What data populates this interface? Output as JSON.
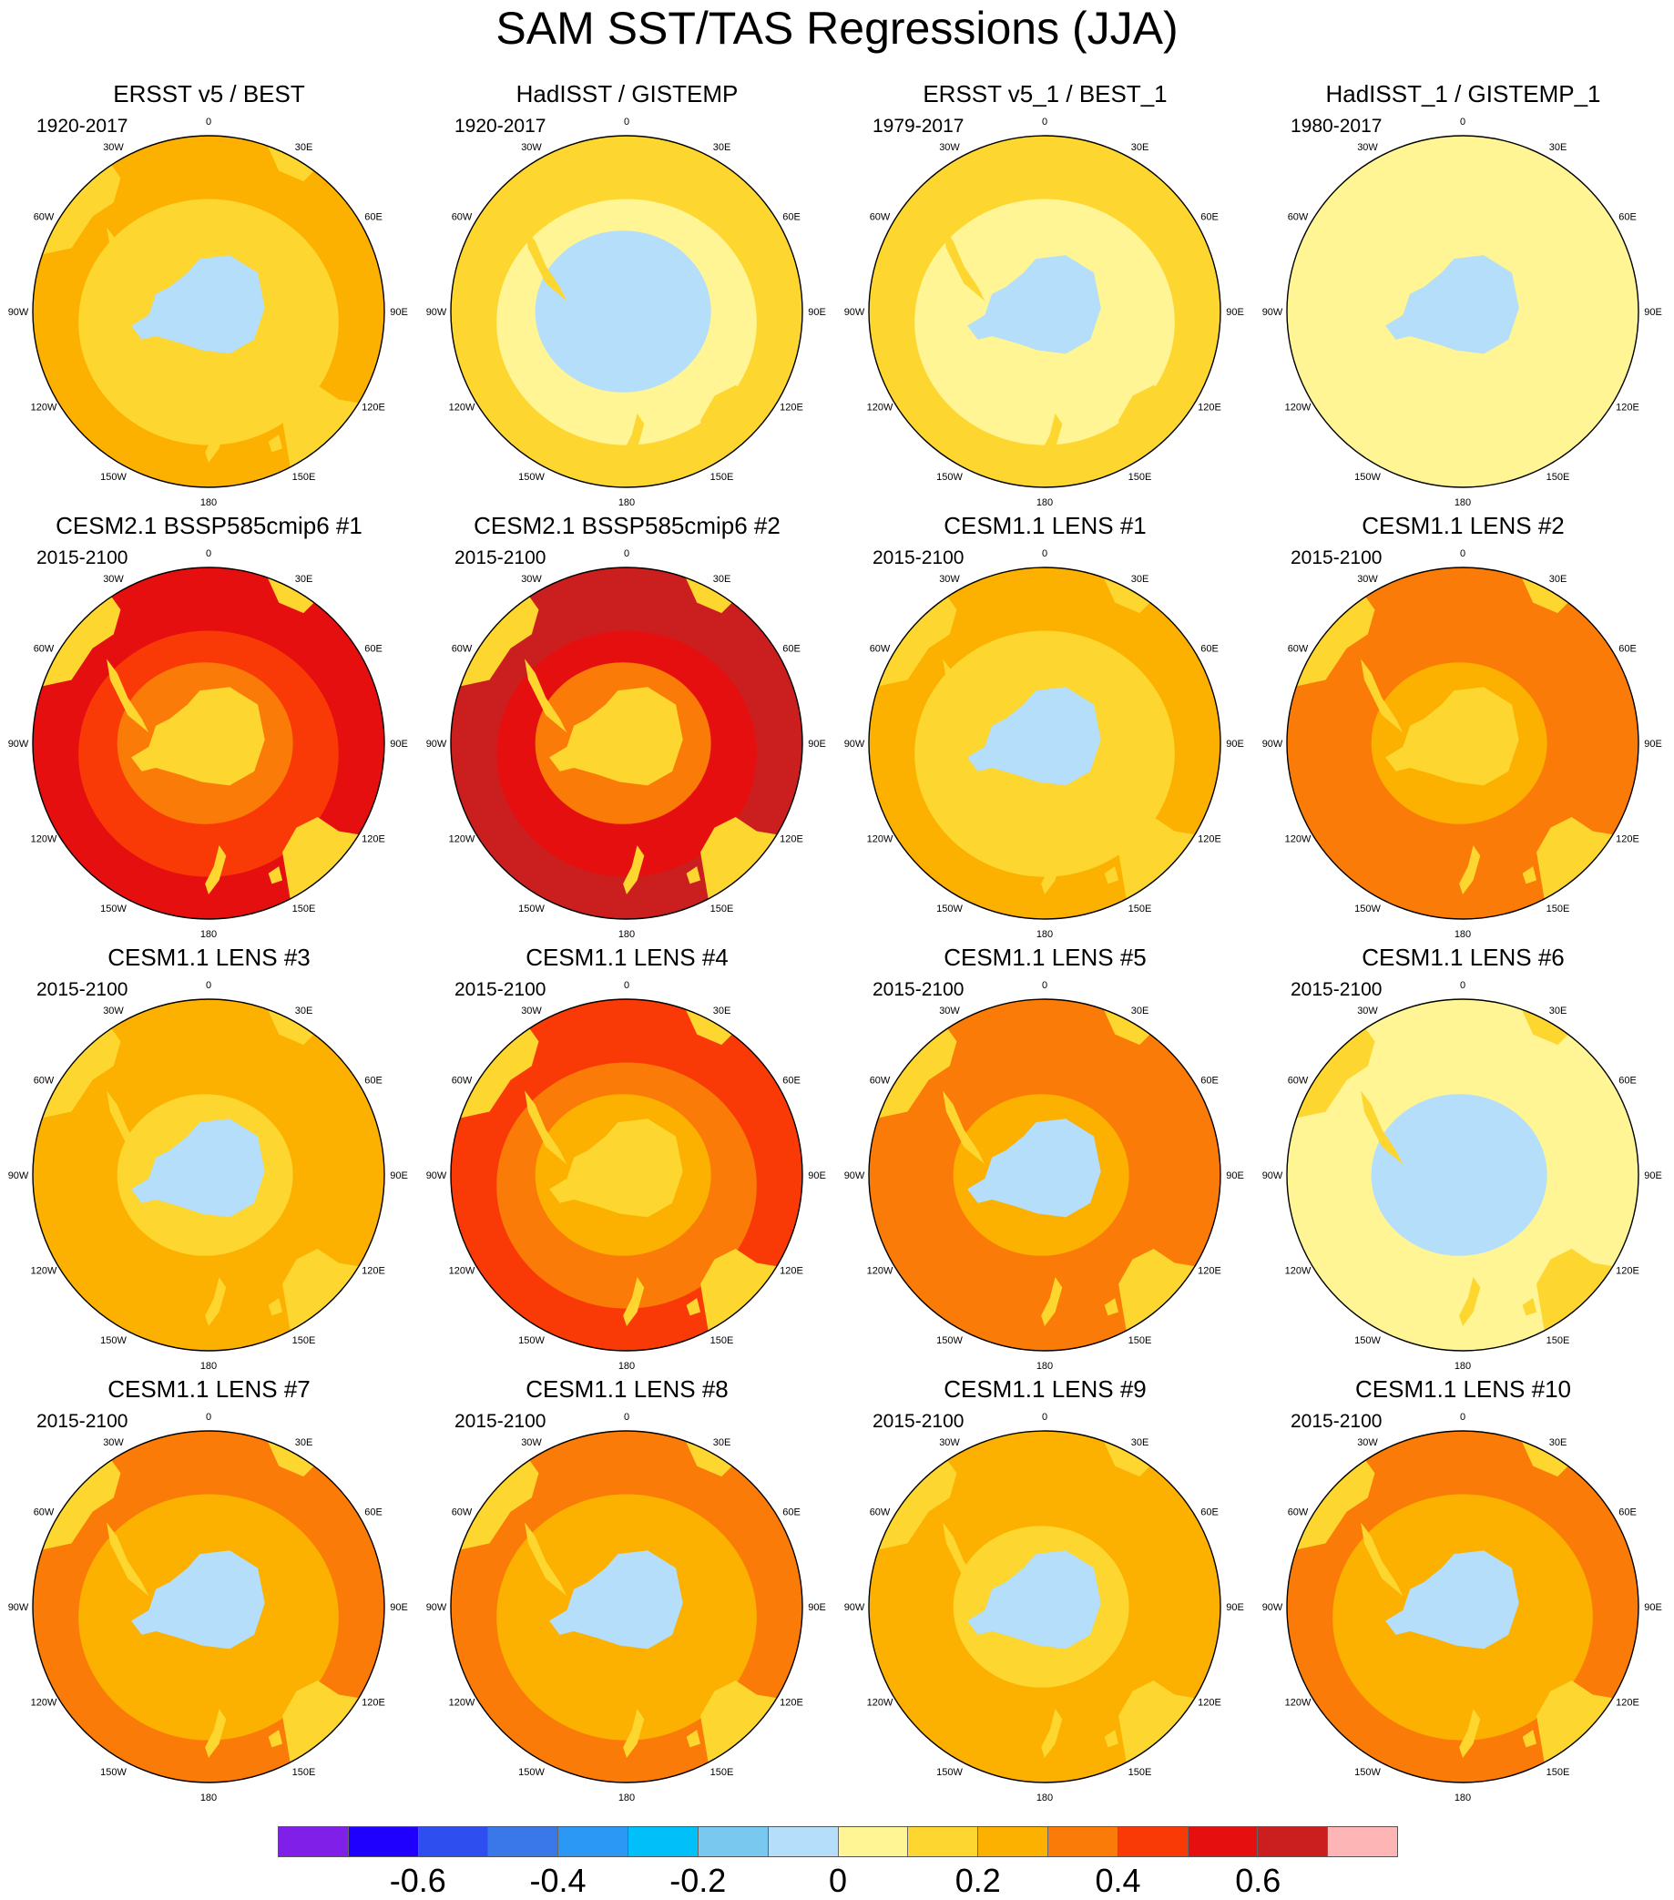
{
  "title": "SAM SST/TAS Regressions (JJA)",
  "longitude_labels": [
    "0",
    "30E",
    "60E",
    "90E",
    "120E",
    "150E",
    "180",
    "150W",
    "120W",
    "90W",
    "60W",
    "30W"
  ],
  "panels": [
    {
      "title": "ERSST v5 / BEST",
      "period": "1920-2017",
      "ocean": 0.2,
      "mid": 0.1,
      "inner": 0.1,
      "ice": -0.1,
      "land": 0.1
    },
    {
      "title": "HadISST / GISTEMP",
      "period": "1920-2017",
      "ocean": 0.1,
      "mid": 0.0,
      "inner": -0.1,
      "ice": -0.1,
      "land": 0.1
    },
    {
      "title": "ERSST v5_1 / BEST_1",
      "period": "1979-2017",
      "ocean": 0.1,
      "mid": 0.0,
      "inner": 0.0,
      "ice": -0.1,
      "land": 0.1
    },
    {
      "title": "HadISST_1 / GISTEMP_1",
      "period": "1980-2017",
      "ocean": 0.0,
      "mid": 0.0,
      "inner": 0.0,
      "ice": -0.1,
      "land": 0.0
    },
    {
      "title": "CESM2.1 BSSP585cmip6 #1",
      "period": "2015-2100",
      "ocean": 0.5,
      "mid": 0.4,
      "inner": 0.3,
      "ice": 0.1,
      "land": 0.1
    },
    {
      "title": "CESM2.1 BSSP585cmip6 #2",
      "period": "2015-2100",
      "ocean": 0.6,
      "mid": 0.5,
      "inner": 0.3,
      "ice": 0.1,
      "land": 0.1
    },
    {
      "title": "CESM1.1 LENS #1",
      "period": "2015-2100",
      "ocean": 0.2,
      "mid": 0.1,
      "inner": 0.1,
      "ice": -0.1,
      "land": 0.1
    },
    {
      "title": "CESM1.1 LENS #2",
      "period": "2015-2100",
      "ocean": 0.3,
      "mid": 0.3,
      "inner": 0.2,
      "ice": 0.1,
      "land": 0.1
    },
    {
      "title": "CESM1.1 LENS #3",
      "period": "2015-2100",
      "ocean": 0.2,
      "mid": 0.2,
      "inner": 0.1,
      "ice": -0.1,
      "land": 0.1
    },
    {
      "title": "CESM1.1 LENS #4",
      "period": "2015-2100",
      "ocean": 0.4,
      "mid": 0.3,
      "inner": 0.2,
      "ice": 0.1,
      "land": 0.1
    },
    {
      "title": "CESM1.1 LENS #5",
      "period": "2015-2100",
      "ocean": 0.3,
      "mid": 0.3,
      "inner": 0.2,
      "ice": -0.1,
      "land": 0.1
    },
    {
      "title": "CESM1.1 LENS #6",
      "period": "2015-2100",
      "ocean": 0.0,
      "mid": 0.0,
      "inner": -0.1,
      "ice": -0.1,
      "land": 0.1
    },
    {
      "title": "CESM1.1 LENS #7",
      "period": "2015-2100",
      "ocean": 0.3,
      "mid": 0.2,
      "inner": 0.2,
      "ice": -0.1,
      "land": 0.1
    },
    {
      "title": "CESM1.1 LENS #8",
      "period": "2015-2100",
      "ocean": 0.3,
      "mid": 0.2,
      "inner": 0.2,
      "ice": -0.1,
      "land": 0.1
    },
    {
      "title": "CESM1.1 LENS #9",
      "period": "2015-2100",
      "ocean": 0.2,
      "mid": 0.2,
      "inner": 0.1,
      "ice": -0.1,
      "land": 0.1
    },
    {
      "title": "CESM1.1 LENS #10",
      "period": "2015-2100",
      "ocean": 0.3,
      "mid": 0.2,
      "inner": 0.2,
      "ice": -0.1,
      "land": 0.1
    }
  ],
  "colorbar": {
    "colors": [
      "#7f1fe8",
      "#1f00ff",
      "#2e4ef0",
      "#3a78ea",
      "#2a98f4",
      "#00bff9",
      "#78c8f0",
      "#b5defa",
      "#fff594",
      "#fdd62f",
      "#fcb000",
      "#fa7b07",
      "#f93a06",
      "#e60f0f",
      "#cb1f1f",
      "#fdb5b5"
    ],
    "labels": [
      "-0.6",
      "-0.4",
      "-0.2",
      "0",
      "0.2",
      "0.4",
      "0.6"
    ],
    "label_values": [
      -0.6,
      -0.4,
      -0.2,
      0,
      0.2,
      0.4,
      0.6
    ],
    "min": -0.8,
    "max": 0.8
  }
}
